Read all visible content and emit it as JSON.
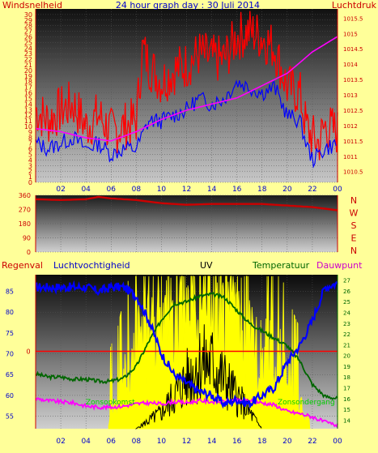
{
  "header": {
    "left_label": "Windsnelheid",
    "title": "24 hour graph day : 30 Juli 2014",
    "right_label": "Luchtdruk"
  },
  "bottom_header": {
    "regenval": "Regenval",
    "luchtvochtigheid": "Luchtvochtigheid",
    "uv": "UV",
    "temperatuur": "Temperatuur",
    "dauwpunt": "Dauwpunt"
  },
  "annotations": {
    "sunrise": "Zonsopkomst",
    "sunset": "Zonsondergang"
  },
  "colors": {
    "background": "#ffff99",
    "wind_gust": "#ff0000",
    "wind_avg": "#0000ff",
    "pressure": "#ff00ff",
    "direction": "#cc0000",
    "humidity": "#0000ff",
    "temperature": "#006600",
    "dewpoint": "#ff00ff",
    "solar": "#ffff00",
    "uv": "#000000",
    "rain": "#ff0000",
    "label_red": "#cc0000",
    "label_blue": "#0000cc",
    "label_green": "#006600",
    "label_magenta": "#cc00cc",
    "sun_label": "#00cc00"
  },
  "chart_data": [
    {
      "type": "line",
      "id": "wind_pressure",
      "x_ticks": [
        "02",
        "04",
        "06",
        "08",
        "10",
        "12",
        "14",
        "16",
        "18",
        "20",
        "22",
        "00"
      ],
      "xlim": [
        0,
        24
      ],
      "left_axis": {
        "label": "Windsnelheid",
        "ylim": [
          0,
          31
        ],
        "ticks": [
          0,
          1,
          2,
          3,
          4,
          5,
          6,
          7,
          8,
          9,
          10,
          11,
          12,
          13,
          14,
          15,
          16,
          17,
          18,
          19,
          20,
          21,
          22,
          23,
          24,
          25,
          26,
          27,
          28,
          29,
          30
        ]
      },
      "right_axis": {
        "label": "Luchtdruk",
        "ylim": [
          1010.15,
          1015.8
        ],
        "ticks": [
          "1010.5",
          "1011",
          "1011.5",
          "1012",
          "1012.5",
          "1013",
          "1013.5",
          "1014",
          "1014.5",
          "1015",
          "1015.5"
        ]
      },
      "series": [
        {
          "role": "wind_gust",
          "color": "#ff0000",
          "x": [
            0,
            1,
            2,
            3,
            4,
            5,
            6,
            7,
            8,
            8.5,
            9,
            10,
            11,
            12,
            13,
            14,
            15,
            16,
            17,
            18,
            19,
            20,
            21,
            21.5,
            22,
            22.5,
            23,
            24
          ],
          "y": [
            13,
            11,
            13,
            14,
            10,
            12,
            9,
            10,
            11,
            24,
            21,
            18,
            20,
            21,
            23,
            22,
            22,
            26,
            27,
            26,
            24,
            17,
            16,
            10,
            8,
            7,
            10,
            9
          ]
        },
        {
          "role": "wind_avg",
          "color": "#0000ff",
          "x": [
            0,
            1,
            2,
            3,
            4,
            5,
            6,
            7,
            8,
            9,
            10,
            11,
            12,
            13,
            14,
            15,
            16,
            17,
            18,
            19,
            20,
            21,
            21.5,
            22,
            22.5,
            23,
            24
          ],
          "y": [
            7,
            6,
            7,
            8,
            6,
            7,
            5,
            6,
            6,
            11,
            11,
            12,
            13,
            15,
            14,
            15,
            18,
            17,
            16,
            17,
            12,
            11,
            7,
            4,
            5,
            6,
            7
          ]
        },
        {
          "role": "pressure",
          "color": "#ff00ff",
          "x": [
            0,
            2,
            4,
            6,
            8,
            10,
            12,
            14,
            16,
            18,
            20,
            22,
            24
          ],
          "y": [
            1011.9,
            1011.8,
            1011.6,
            1011.5,
            1011.8,
            1012.2,
            1012.5,
            1012.7,
            1012.9,
            1013.3,
            1013.7,
            1014.4,
            1014.9
          ]
        }
      ]
    },
    {
      "type": "line",
      "id": "wind_direction",
      "x_ticks": [
        "02",
        "04",
        "06",
        "08",
        "10",
        "12",
        "14",
        "16",
        "18",
        "20",
        "22",
        "00"
      ],
      "xlim": [
        0,
        24
      ],
      "left_axis": {
        "ylim": [
          0,
          360
        ],
        "ticks": [
          "0",
          "90",
          "180",
          "270",
          "360"
        ]
      },
      "right_axis": {
        "ticks": [
          "N",
          "W",
          "S",
          "E",
          "N"
        ]
      },
      "series": [
        {
          "role": "direction",
          "color": "#cc0000",
          "x": [
            0,
            2,
            4,
            5,
            6,
            8,
            10,
            12,
            14,
            16,
            18,
            20,
            22,
            24
          ],
          "y": [
            335,
            330,
            335,
            350,
            340,
            330,
            310,
            300,
            305,
            305,
            305,
            295,
            285,
            265
          ]
        }
      ]
    },
    {
      "type": "line",
      "id": "humidity_temp_uv",
      "x_ticks": [
        "02",
        "04",
        "06",
        "08",
        "10",
        "12",
        "14",
        "16",
        "18",
        "20",
        "22",
        "00"
      ],
      "xlim": [
        0,
        24
      ],
      "left_axis": {
        "label": "Luchtvochtigheid",
        "ylim": [
          52,
          89
        ],
        "ticks": [
          55,
          60,
          65,
          70,
          75,
          80,
          85
        ]
      },
      "right_axis": {
        "label": "Temperatuur",
        "ylim": [
          13.2,
          27.5
        ],
        "ticks": [
          14,
          15,
          16,
          17,
          18,
          19,
          20,
          21,
          22,
          23,
          24,
          25,
          26,
          27
        ]
      },
      "rain_axis": {
        "label": "Regenval",
        "ticks": [
          "0"
        ],
        "value": 0
      },
      "series": [
        {
          "role": "humidity",
          "color": "#0000ff",
          "x": [
            0,
            2,
            4,
            5,
            6,
            7,
            8,
            9,
            10,
            11,
            12,
            13,
            14,
            15,
            16,
            17,
            18,
            19,
            20,
            21,
            22,
            23,
            24
          ],
          "y": [
            86,
            86,
            86,
            85,
            86,
            86,
            84,
            78,
            70,
            65,
            63,
            61,
            60,
            58,
            59,
            58,
            60,
            62,
            68,
            72,
            78,
            86,
            87
          ]
        },
        {
          "role": "temperature",
          "color": "#006600",
          "x": [
            0,
            1,
            2,
            3,
            4,
            5,
            6,
            7,
            8,
            9,
            10,
            11,
            12,
            13,
            14,
            15,
            16,
            17,
            18,
            19,
            20,
            21,
            22,
            23,
            24
          ],
          "y": [
            18.3,
            18.0,
            18.0,
            17.8,
            17.8,
            17.6,
            17.6,
            17.9,
            19.0,
            21.3,
            23.3,
            24.8,
            25.0,
            25.5,
            25.7,
            25.4,
            24.2,
            23.0,
            22.3,
            21.6,
            20.9,
            19.5,
            17.3,
            16.2,
            16.0
          ]
        },
        {
          "role": "dewpoint",
          "color": "#ff00ff",
          "x": [
            0,
            1,
            2,
            3,
            4,
            5,
            6,
            7,
            8,
            9,
            10,
            11,
            12,
            13,
            14,
            15,
            16,
            17,
            18,
            19,
            20,
            21,
            22,
            23,
            24
          ],
          "y": [
            16.0,
            15.8,
            15.7,
            15.6,
            15.3,
            15.2,
            15.2,
            15.3,
            15.5,
            15.6,
            15.5,
            15.7,
            15.6,
            15.8,
            15.7,
            15.7,
            15.8,
            15.8,
            15.6,
            15.4,
            14.8,
            14.6,
            14.3,
            13.8,
            13.5
          ]
        },
        {
          "role": "solar",
          "color": "#ffff00",
          "x": [
            5.8,
            6.5,
            7.3,
            8.3,
            10,
            12,
            14,
            16,
            18,
            19.3,
            20.5,
            21.8
          ],
          "y": [
            0.05,
            0.2,
            0.5,
            0.7,
            0.8,
            0.9,
            0.9,
            0.85,
            0.6,
            0.6,
            0.3,
            0.05
          ]
        },
        {
          "role": "uv",
          "color": "#000000",
          "x": [
            8,
            9,
            10,
            11,
            12,
            13,
            14,
            15,
            16,
            17,
            18
          ],
          "y": [
            0,
            1,
            2,
            4,
            6,
            8,
            8,
            6,
            4,
            2,
            0
          ]
        }
      ],
      "sunrise_x": 5.8,
      "sunset_x": 21.8
    }
  ]
}
